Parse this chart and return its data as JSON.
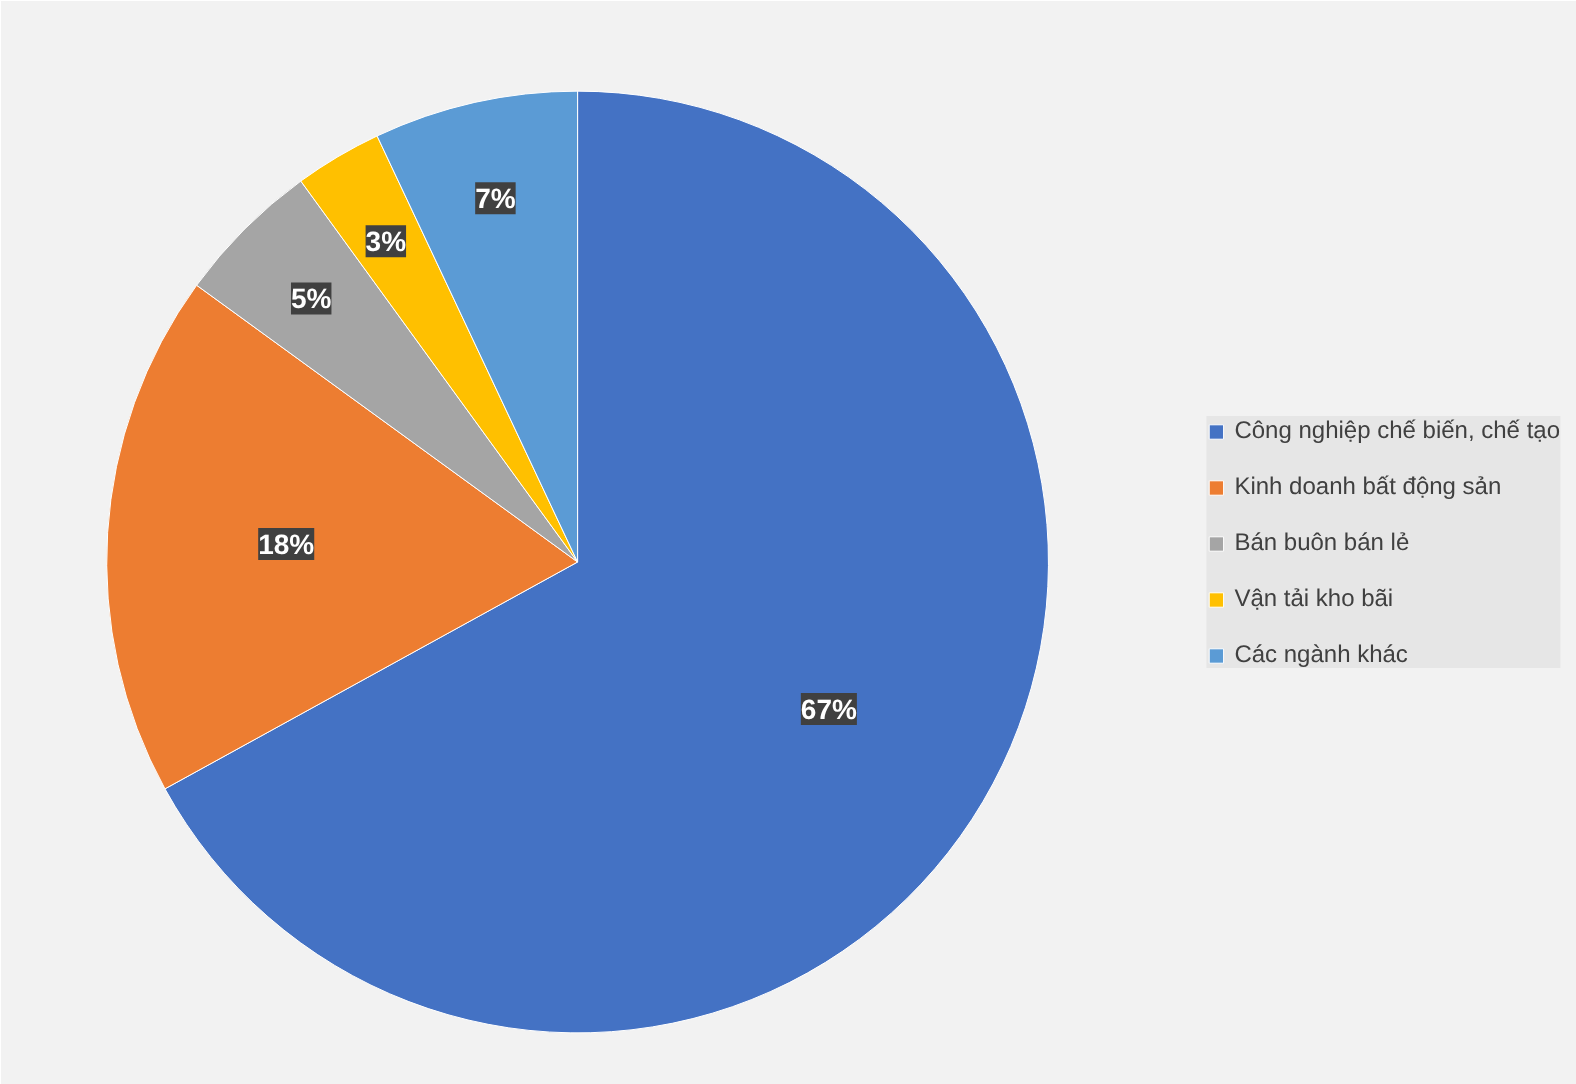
{
  "chart_data": {
    "type": "pie",
    "categories": [
      "Công nghiệp chế biến, chế tạo",
      "Kinh doanh bất động sản",
      "Bán buôn bán lẻ",
      "Vận tải kho bãi",
      "Các ngành khác"
    ],
    "values": [
      67,
      18,
      5,
      3,
      7
    ],
    "colors": [
      "#4472c4",
      "#ed7d31",
      "#a5a5a5",
      "#ffc000",
      "#5b9bd5"
    ],
    "value_labels": [
      "67%",
      "18%",
      "5%",
      "3%",
      "7%"
    ],
    "legend": "right"
  }
}
